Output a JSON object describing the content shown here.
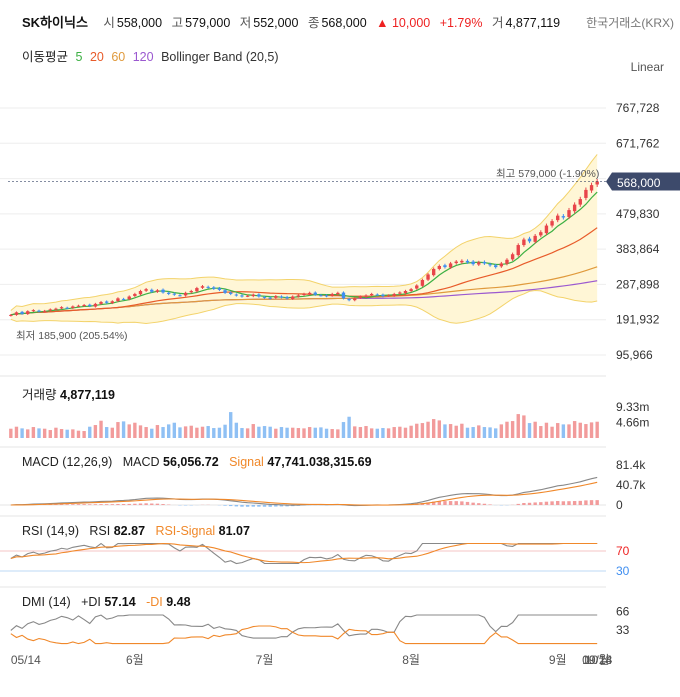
{
  "header": {
    "name": "SK하이닉스",
    "open_label": "시",
    "open": "558,000",
    "high_label": "고",
    "high": "579,000",
    "low_label": "저",
    "low": "552,000",
    "close_label": "종",
    "close": "568,000",
    "change": "▲ 10,000",
    "change_pct": "+1.79%",
    "volume_label": "거",
    "volume": "4,877,119",
    "exchange": "한국거래소(KRX)"
  },
  "ma_legend": {
    "label": "이동평균",
    "periods": [
      "5",
      "20",
      "60",
      "120"
    ],
    "bollinger": "Bollinger Band (20,5)"
  },
  "scale_mode": "Linear",
  "colors": {
    "ma5": "#3cb043",
    "ma20": "#e85b2a",
    "ma60": "#e09a3c",
    "ma120": "#9b59d0",
    "up": "#e8454a",
    "down": "#3f8ef0",
    "band_fill": "#fff6d6",
    "band_line": "#f3d36b",
    "macd": "#888888",
    "signal": "#f0882a",
    "price_tag": "#3d4a6b"
  },
  "chart_data": [
    {
      "type": "candlestick",
      "yticks": [
        "767,728",
        "671,762",
        "575,796",
        "479,830",
        "383,864",
        "287,898",
        "191,932",
        "95,966"
      ],
      "ytick_values": [
        767728,
        671762,
        575796,
        479830,
        383864,
        287898,
        191932,
        95966
      ],
      "ylim": [
        95966,
        767728
      ],
      "current_price": "568,000",
      "max_annotation": "최고 579,000 (-1.90%)",
      "min_annotation": "최저 185,900 (205.54%)",
      "xticks": [
        "05/14",
        "6월",
        "7월",
        "8월",
        "9월",
        "09/14",
        "10월",
        "10/28"
      ],
      "close": [
        205000,
        212000,
        208000,
        215000,
        218000,
        214000,
        216000,
        220000,
        222000,
        226000,
        224000,
        228000,
        230000,
        232000,
        229000,
        235000,
        240000,
        238000,
        242000,
        250000,
        248000,
        255000,
        262000,
        270000,
        275000,
        268000,
        272000,
        266000,
        262000,
        260000,
        258000,
        265000,
        270000,
        278000,
        283000,
        280000,
        276000,
        273000,
        265000,
        262000,
        258000,
        255000,
        257000,
        260000,
        255000,
        252000,
        250000,
        256000,
        253000,
        250000,
        255000,
        258000,
        262000,
        265000,
        260000,
        258000,
        256000,
        262000,
        265000,
        250000,
        245000,
        250000,
        255000,
        258000,
        262000,
        260000,
        256000,
        258000,
        262000,
        266000,
        270000,
        275000,
        285000,
        300000,
        315000,
        330000,
        338000,
        335000,
        345000,
        350000,
        352000,
        348000,
        343000,
        348000,
        345000,
        340000,
        335000,
        345000,
        355000,
        370000,
        395000,
        410000,
        405000,
        420000,
        430000,
        448000,
        460000,
        475000,
        470000,
        490000,
        505000,
        520000,
        545000,
        558000,
        568000
      ],
      "volume": {
        "yticks": [
          "9.33m",
          "4.66m"
        ],
        "ytick_values": [
          9330000,
          4660000
        ],
        "last": "4,877,119",
        "values": [
          2.8,
          3.4,
          2.9,
          2.6,
          3.3,
          2.9,
          2.8,
          2.4,
          3.1,
          2.7,
          2.5,
          2.6,
          2.2,
          2.1,
          3.4,
          3.9,
          5.2,
          3.3,
          3.1,
          4.8,
          5.0,
          4.1,
          4.6,
          3.8,
          3.3,
          2.8,
          3.9,
          3.3,
          4.1,
          4.6,
          3.2,
          3.5,
          3.7,
          3.1,
          3.4,
          3.6,
          3.0,
          3.1,
          4.0,
          7.8,
          4.6,
          3.0,
          2.9,
          4.2,
          3.4,
          3.6,
          3.4,
          2.8,
          3.3,
          3.1,
          3.1,
          3.0,
          2.9,
          3.3,
          3.1,
          3.2,
          2.8,
          2.7,
          2.6,
          4.8,
          6.4,
          3.5,
          3.3,
          3.6,
          2.9,
          2.8,
          3.0,
          2.9,
          3.3,
          3.4,
          3.1,
          3.7,
          4.3,
          4.5,
          4.9,
          5.7,
          5.3,
          4.1,
          4.2,
          3.7,
          4.3,
          3.1,
          3.3,
          3.8,
          3.3,
          3.2,
          2.9,
          4.1,
          4.9,
          5.1,
          7.2,
          6.8,
          4.5,
          4.9,
          3.6,
          4.6,
          3.4,
          4.5,
          4.1,
          4.1,
          5.1,
          4.6,
          4.2,
          4.7,
          4.9
        ]
      }
    },
    {
      "type": "line",
      "name": "MACD",
      "params": "(12,26,9)",
      "macd_label": "MACD",
      "macd_value": "56,056.72",
      "signal_label": "Signal",
      "signal_value": "47,741.038,315.69",
      "yticks": [
        "81.4k",
        "40.7k",
        "0"
      ],
      "ytick_values": [
        81400,
        40700,
        0
      ]
    },
    {
      "type": "line",
      "name": "RSI",
      "params": "(14,9)",
      "rsi_label": "RSI",
      "rsi_value": "82.87",
      "signal_label": "RSI-Signal",
      "signal_value": "81.07",
      "yticks": [
        "70",
        "30"
      ],
      "ytick_values": [
        70,
        30
      ]
    },
    {
      "type": "line",
      "name": "DMI",
      "params": "(14)",
      "plus_label": "+DI",
      "plus_value": "57.14",
      "minus_label": "-DI",
      "minus_value": "9.48",
      "yticks": [
        "66",
        "33"
      ],
      "ytick_values": [
        66,
        33
      ]
    }
  ]
}
